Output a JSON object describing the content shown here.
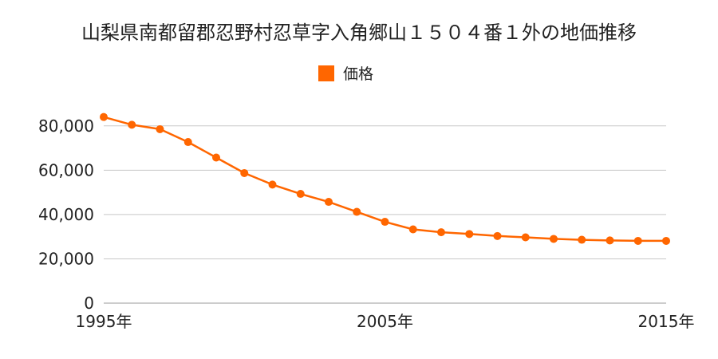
{
  "chart_data": {
    "type": "line",
    "title": "山梨県南都留郡忍野村忍草字入角郷山１５０４番１外の地価推移",
    "xlabel": "",
    "ylabel": "",
    "legend": {
      "label": "価格",
      "color": "#ff6600",
      "placement": "top-center"
    },
    "x_ticks": [
      "1995年",
      "2005年",
      "2015年"
    ],
    "y_ticks": [
      "0",
      "20,000",
      "40,000",
      "60,000",
      "80,000"
    ],
    "ylim": [
      0,
      90000
    ],
    "xlim": [
      1995,
      2015
    ],
    "grid": true,
    "series": [
      {
        "name": "価格",
        "color": "#ff6600",
        "x": [
          1995,
          1996,
          1997,
          1998,
          1999,
          2000,
          2001,
          2002,
          2003,
          2004,
          2005,
          2006,
          2007,
          2008,
          2009,
          2010,
          2011,
          2012,
          2013,
          2014,
          2015
        ],
        "values": [
          84000,
          80500,
          78500,
          72700,
          65700,
          58700,
          53500,
          49300,
          45700,
          41200,
          36700,
          33300,
          32000,
          31200,
          30300,
          29700,
          29000,
          28600,
          28300,
          28100,
          28100
        ]
      }
    ]
  }
}
